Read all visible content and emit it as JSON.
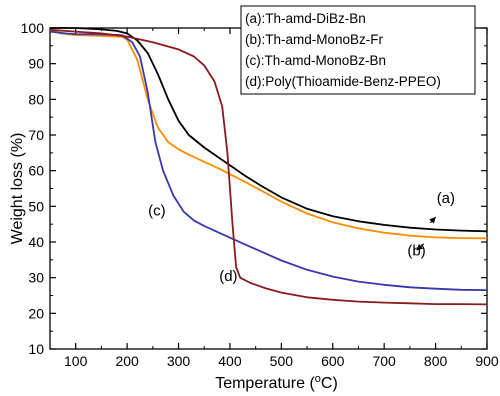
{
  "chart_data": {
    "type": "line",
    "xlabel": "Temperature (",
    "xlabel_unit_sup": "o",
    "xlabel_unit": "C)",
    "ylabel": "Weight loss (%)",
    "xlim": [
      50,
      900
    ],
    "ylim": [
      10,
      100
    ],
    "x_ticks": [
      100,
      200,
      300,
      400,
      500,
      600,
      700,
      800,
      900
    ],
    "y_ticks": [
      10,
      20,
      30,
      40,
      50,
      60,
      70,
      80,
      90,
      100
    ],
    "grid": false,
    "legend_position": "top-right",
    "series": [
      {
        "name": "(a):Th-amd-DiBz-Bn",
        "color": "#000000",
        "points": [
          [
            50,
            100
          ],
          [
            100,
            100
          ],
          [
            150,
            99.6
          ],
          [
            180,
            99.2
          ],
          [
            200,
            98.5
          ],
          [
            220,
            96.5
          ],
          [
            240,
            93
          ],
          [
            260,
            87
          ],
          [
            280,
            80
          ],
          [
            300,
            74
          ],
          [
            320,
            70
          ],
          [
            350,
            66.5
          ],
          [
            380,
            63.5
          ],
          [
            400,
            61.5
          ],
          [
            430,
            58.5
          ],
          [
            460,
            55.8
          ],
          [
            500,
            52.5
          ],
          [
            550,
            49.3
          ],
          [
            600,
            47.2
          ],
          [
            650,
            45.8
          ],
          [
            700,
            44.8
          ],
          [
            750,
            44
          ],
          [
            800,
            43.5
          ],
          [
            850,
            43.2
          ],
          [
            900,
            43
          ]
        ]
      },
      {
        "name": "(b):Th-amd-MonoBz-Fr",
        "color": "#ff8c00",
        "points": [
          [
            50,
            99.5
          ],
          [
            70,
            98.5
          ],
          [
            100,
            98
          ],
          [
            150,
            97.8
          ],
          [
            190,
            97.5
          ],
          [
            200,
            96.8
          ],
          [
            220,
            91
          ],
          [
            240,
            80
          ],
          [
            260,
            72
          ],
          [
            280,
            68
          ],
          [
            300,
            66
          ],
          [
            320,
            64.5
          ],
          [
            350,
            62.5
          ],
          [
            380,
            60.5
          ],
          [
            400,
            59
          ],
          [
            430,
            56.8
          ],
          [
            460,
            54.5
          ],
          [
            500,
            51.3
          ],
          [
            550,
            48
          ],
          [
            600,
            45.5
          ],
          [
            650,
            43.8
          ],
          [
            700,
            42.6
          ],
          [
            750,
            41.8
          ],
          [
            800,
            41.3
          ],
          [
            850,
            41.1
          ],
          [
            900,
            41
          ]
        ]
      },
      {
        "name": "(c):Th-amd-MonoBz-Bn",
        "color": "#3a36b0",
        "points": [
          [
            50,
            99
          ],
          [
            80,
            98.5
          ],
          [
            100,
            98.3
          ],
          [
            150,
            98.2
          ],
          [
            190,
            98
          ],
          [
            210,
            96
          ],
          [
            225,
            92
          ],
          [
            240,
            82
          ],
          [
            255,
            68
          ],
          [
            270,
            60
          ],
          [
            290,
            53
          ],
          [
            310,
            48.5
          ],
          [
            330,
            46
          ],
          [
            350,
            44.5
          ],
          [
            380,
            42.5
          ],
          [
            400,
            41.2
          ],
          [
            450,
            38
          ],
          [
            500,
            34.8
          ],
          [
            550,
            32.2
          ],
          [
            600,
            30.3
          ],
          [
            650,
            28.9
          ],
          [
            700,
            28
          ],
          [
            750,
            27.3
          ],
          [
            800,
            26.9
          ],
          [
            850,
            26.6
          ],
          [
            900,
            26.5
          ]
        ]
      },
      {
        "name": "(d):Poly(Thioamide-Benz-PPEO)",
        "color": "#8b1a1a",
        "points": [
          [
            50,
            99.5
          ],
          [
            100,
            99
          ],
          [
            150,
            98.5
          ],
          [
            200,
            97.6
          ],
          [
            250,
            96
          ],
          [
            300,
            94
          ],
          [
            330,
            92
          ],
          [
            350,
            89.5
          ],
          [
            370,
            85
          ],
          [
            385,
            78
          ],
          [
            395,
            65
          ],
          [
            405,
            45
          ],
          [
            412,
            33
          ],
          [
            420,
            30
          ],
          [
            440,
            28.5
          ],
          [
            470,
            27
          ],
          [
            500,
            25.8
          ],
          [
            550,
            24.5
          ],
          [
            600,
            23.8
          ],
          [
            650,
            23.3
          ],
          [
            700,
            23
          ],
          [
            750,
            22.8
          ],
          [
            800,
            22.6
          ],
          [
            850,
            22.6
          ],
          [
            900,
            22.5
          ]
        ]
      }
    ],
    "annotations": [
      {
        "text": "(a)",
        "x": 820,
        "y": 51
      },
      {
        "text": "(b)",
        "x": 763,
        "y": 36.2
      },
      {
        "text": "(c)",
        "x": 258,
        "y": 47.5
      },
      {
        "text": "(d)",
        "x": 397,
        "y": 29
      }
    ]
  }
}
